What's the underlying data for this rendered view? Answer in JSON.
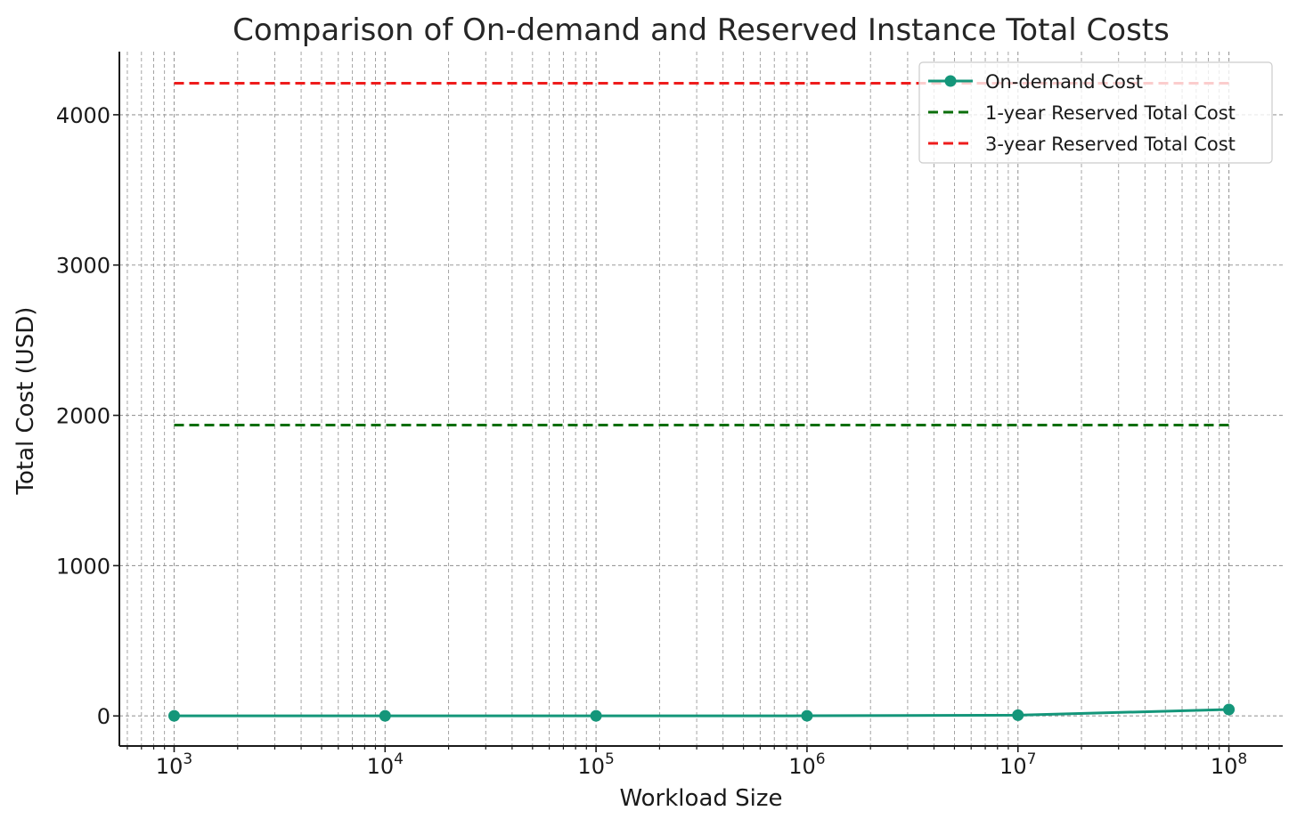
{
  "chart_data": {
    "type": "line",
    "title": "Comparison of On-demand and Reserved Instance Total Costs",
    "xlabel": "Workload Size",
    "ylabel": "Total Cost (USD)",
    "xscale": "log",
    "xlim": [
      550,
      180000000
    ],
    "ylim": [
      -200,
      4420
    ],
    "xticks": [
      {
        "value": 1000,
        "base": "10",
        "exp": "3"
      },
      {
        "value": 10000,
        "base": "10",
        "exp": "4"
      },
      {
        "value": 100000,
        "base": "10",
        "exp": "5"
      },
      {
        "value": 1000000,
        "base": "10",
        "exp": "6"
      },
      {
        "value": 10000000,
        "base": "10",
        "exp": "7"
      },
      {
        "value": 100000000,
        "base": "10",
        "exp": "8"
      }
    ],
    "yticks": [
      0,
      1000,
      2000,
      3000,
      4000
    ],
    "grid": true,
    "legend_position": "top-right",
    "series": [
      {
        "name": "On-demand Cost",
        "style": "solid-markers",
        "color": "#14967a",
        "x": [
          1000,
          10000,
          100000,
          1000000,
          10000000,
          100000000
        ],
        "values": [
          0.5,
          0.5,
          0.5,
          1,
          5,
          43
        ]
      },
      {
        "name": "1-year Reserved Total Cost",
        "style": "dashed",
        "color": "#0a6e0a",
        "x": [
          1000,
          100000000
        ],
        "values": [
          1935,
          1935
        ]
      },
      {
        "name": "3-year Reserved Total Cost",
        "style": "dashed",
        "color": "#ee1c1c",
        "x": [
          1000,
          100000000
        ],
        "values": [
          4210,
          4210
        ]
      }
    ]
  }
}
